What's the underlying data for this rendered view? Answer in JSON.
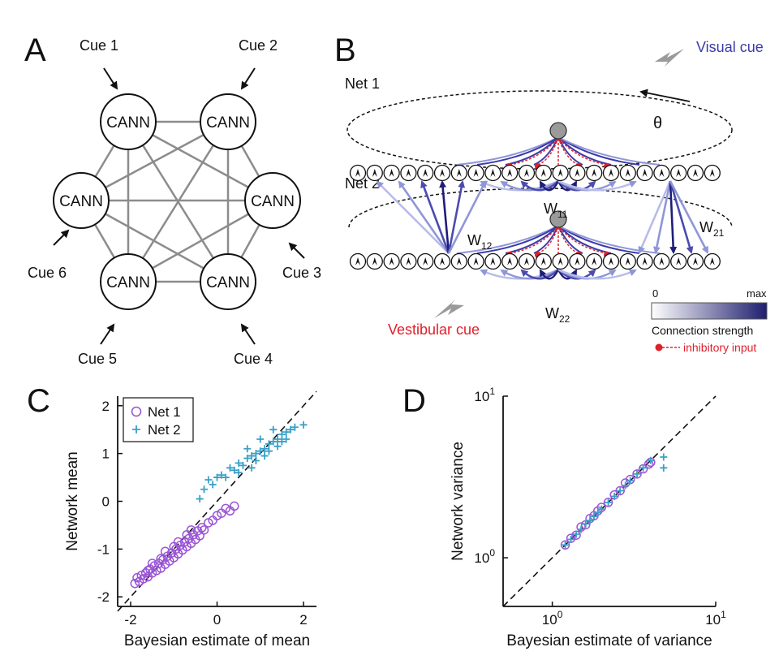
{
  "panels": {
    "a": "A",
    "b": "B",
    "c": "C",
    "d": "D"
  },
  "panel_a": {
    "node_label": "CANN",
    "cues": [
      "Cue 1",
      "Cue 2",
      "Cue 3",
      "Cue 4",
      "Cue 5",
      "Cue 6"
    ]
  },
  "panel_b": {
    "net1": "Net 1",
    "net2": "Net 2",
    "theta": "θ",
    "visual_cue": "Visual cue",
    "vestibular_cue": "Vestibular cue",
    "w11": "W",
    "w11_sub": "11",
    "w12": "W",
    "w12_sub": "12",
    "w21": "W",
    "w21_sub": "21",
    "w22": "W",
    "w22_sub": "22",
    "scale_min": "0",
    "scale_max": "max",
    "scale_label": "Connection strength",
    "inhibitory": "inhibitory input",
    "colors": {
      "visual": "#3b3ba8",
      "vestibular": "#e0202a",
      "strong": "#1e1e78",
      "weak": "#b8bce8"
    }
  },
  "chart_data": [
    {
      "type": "scatter",
      "xlabel": "Bayesian estimate of mean",
      "ylabel": "Network mean",
      "xlim": [
        -2.3,
        2.3
      ],
      "ylim": [
        -2.2,
        2.2
      ],
      "xticks": [
        "-2",
        "0",
        "2"
      ],
      "yticks": [
        "-2",
        "-1",
        "0",
        "1",
        "2"
      ],
      "legend_position": "top-left",
      "diagonal": true,
      "series": [
        {
          "name": "Net 1",
          "marker": "circle",
          "color": "#9b55d6",
          "points": [
            [
              -1.9,
              -1.72
            ],
            [
              -1.85,
              -1.6
            ],
            [
              -1.8,
              -1.68
            ],
            [
              -1.75,
              -1.55
            ],
            [
              -1.7,
              -1.62
            ],
            [
              -1.65,
              -1.5
            ],
            [
              -1.6,
              -1.58
            ],
            [
              -1.55,
              -1.42
            ],
            [
              -1.5,
              -1.5
            ],
            [
              -1.45,
              -1.35
            ],
            [
              -1.4,
              -1.45
            ],
            [
              -1.35,
              -1.3
            ],
            [
              -1.3,
              -1.4
            ],
            [
              -1.25,
              -1.22
            ],
            [
              -1.2,
              -1.32
            ],
            [
              -1.15,
              -1.15
            ],
            [
              -1.1,
              -1.25
            ],
            [
              -1.05,
              -1.08
            ],
            [
              -1.0,
              -1.18
            ],
            [
              -0.95,
              -1.0
            ],
            [
              -0.9,
              -1.1
            ],
            [
              -0.85,
              -0.92
            ],
            [
              -0.8,
              -1.02
            ],
            [
              -0.75,
              -0.85
            ],
            [
              -0.7,
              -0.95
            ],
            [
              -0.65,
              -0.78
            ],
            [
              -0.6,
              -0.88
            ],
            [
              -0.55,
              -0.7
            ],
            [
              -0.5,
              -0.8
            ],
            [
              -0.45,
              -0.62
            ],
            [
              -0.4,
              -0.72
            ],
            [
              -0.35,
              -0.55
            ],
            [
              -0.3,
              -0.6
            ],
            [
              -0.2,
              -0.45
            ],
            [
              -0.1,
              -0.4
            ],
            [
              0.0,
              -0.3
            ],
            [
              0.1,
              -0.25
            ],
            [
              0.2,
              -0.15
            ],
            [
              0.3,
              -0.2
            ],
            [
              0.4,
              -0.1
            ],
            [
              -1.6,
              -1.45
            ],
            [
              -1.3,
              -1.2
            ],
            [
              -1.0,
              -0.95
            ],
            [
              -0.7,
              -0.7
            ],
            [
              -1.2,
              -1.05
            ],
            [
              -0.9,
              -0.85
            ],
            [
              -1.5,
              -1.3
            ],
            [
              -0.6,
              -0.6
            ]
          ]
        },
        {
          "name": "Net 2",
          "marker": "plus",
          "color": "#3aa0c8",
          "points": [
            [
              -0.4,
              0.05
            ],
            [
              -0.3,
              0.25
            ],
            [
              -0.2,
              0.45
            ],
            [
              -0.1,
              0.35
            ],
            [
              0.0,
              0.5
            ],
            [
              0.1,
              0.55
            ],
            [
              0.2,
              0.5
            ],
            [
              0.3,
              0.7
            ],
            [
              0.4,
              0.65
            ],
            [
              0.5,
              0.8
            ],
            [
              0.6,
              0.75
            ],
            [
              0.7,
              0.9
            ],
            [
              0.8,
              0.95
            ],
            [
              0.9,
              1.0
            ],
            [
              1.0,
              1.05
            ],
            [
              1.1,
              1.1
            ],
            [
              1.2,
              1.2
            ],
            [
              1.3,
              1.25
            ],
            [
              1.4,
              1.3
            ],
            [
              1.5,
              1.4
            ],
            [
              1.6,
              1.45
            ],
            [
              1.7,
              1.5
            ],
            [
              1.8,
              1.55
            ],
            [
              2.0,
              1.6
            ],
            [
              0.5,
              0.6
            ],
            [
              0.9,
              0.85
            ],
            [
              1.2,
              1.05
            ],
            [
              1.5,
              1.25
            ],
            [
              0.7,
              1.1
            ],
            [
              1.0,
              1.3
            ],
            [
              1.3,
              1.5
            ],
            [
              0.8,
              0.7
            ],
            [
              1.1,
              0.95
            ],
            [
              1.4,
              1.15
            ],
            [
              1.6,
              1.3
            ]
          ]
        }
      ]
    },
    {
      "type": "scatter",
      "xlabel": "Bayesian estimate of variance",
      "ylabel": "Network variance",
      "xscale": "log",
      "yscale": "log",
      "xlim": [
        0.5,
        10
      ],
      "ylim": [
        0.5,
        10
      ],
      "xticks": [
        "10⁰",
        "10¹"
      ],
      "yticks": [
        "10⁰",
        "10¹"
      ],
      "diagonal": true,
      "series": [
        {
          "name": "Net 1",
          "marker": "circle",
          "color": "#9b55d6",
          "points": [
            [
              1.2,
              1.2
            ],
            [
              1.3,
              1.32
            ],
            [
              1.4,
              1.38
            ],
            [
              1.5,
              1.55
            ],
            [
              1.6,
              1.6
            ],
            [
              1.7,
              1.75
            ],
            [
              1.8,
              1.82
            ],
            [
              1.9,
              1.95
            ],
            [
              2.0,
              2.05
            ],
            [
              2.2,
              2.2
            ],
            [
              2.4,
              2.45
            ],
            [
              2.6,
              2.6
            ],
            [
              2.8,
              2.9
            ],
            [
              3.0,
              3.05
            ],
            [
              3.3,
              3.3
            ],
            [
              3.6,
              3.55
            ],
            [
              3.9,
              3.8
            ],
            [
              4.0,
              3.9
            ]
          ]
        },
        {
          "name": "Net 2",
          "marker": "plus",
          "color": "#3aa0c8",
          "points": [
            [
              1.2,
              1.2
            ],
            [
              1.3,
              1.3
            ],
            [
              1.4,
              1.4
            ],
            [
              1.5,
              1.5
            ],
            [
              1.6,
              1.62
            ],
            [
              1.7,
              1.7
            ],
            [
              1.8,
              1.8
            ],
            [
              1.9,
              1.9
            ],
            [
              2.0,
              2.0
            ],
            [
              2.2,
              2.2
            ],
            [
              2.4,
              2.4
            ],
            [
              2.6,
              2.6
            ],
            [
              2.8,
              2.8
            ],
            [
              3.0,
              3.0
            ],
            [
              3.3,
              3.3
            ],
            [
              3.6,
              3.6
            ],
            [
              4.0,
              4.0
            ],
            [
              4.8,
              4.2
            ],
            [
              4.8,
              3.6
            ]
          ]
        }
      ]
    }
  ]
}
